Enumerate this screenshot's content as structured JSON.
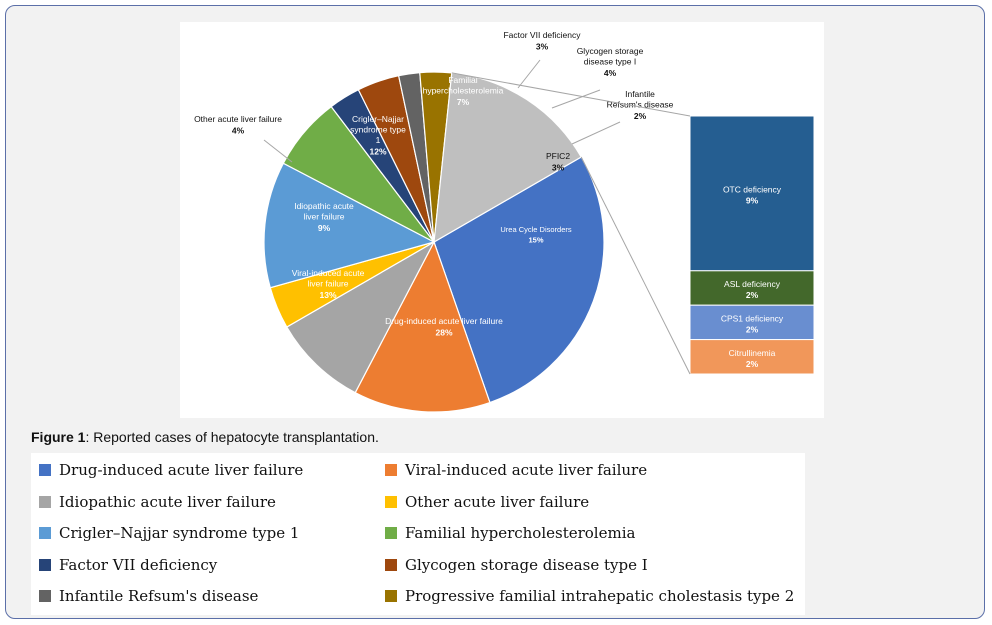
{
  "caption": {
    "label": "Figure 1",
    "text": ": Reported cases of hepatocyte transplantation."
  },
  "chart_data": {
    "type": "pie",
    "title": "",
    "slices": [
      {
        "name": "Drug-induced acute liver failure",
        "label": "Drug-induced acute liver failure",
        "value": 28,
        "pct": "28%",
        "color": "#4472c4"
      },
      {
        "name": "Viral-induced acute liver failure",
        "label": "Viral-induced acute liver failure",
        "value": 13,
        "pct": "13%",
        "color": "#ed7d31"
      },
      {
        "name": "Idiopathic acute liver failure",
        "label": "Idiopathic acute liver failure",
        "value": 9,
        "pct": "9%",
        "color": "#a5a5a5"
      },
      {
        "name": "Other acute liver failure",
        "label": "Other acute liver failure",
        "value": 4,
        "pct": "4%",
        "color": "#ffc000"
      },
      {
        "name": "Crigler–Najjar syndrome type 1",
        "label": "Crigler–Najjar syndrome type 1",
        "value": 12,
        "pct": "12%",
        "color": "#5b9bd5"
      },
      {
        "name": "Familial hypercholesterolemia",
        "label": "Familial hypercholesterolemia",
        "value": 7,
        "pct": "7%",
        "color": "#70ad47"
      },
      {
        "name": "Factor VII deficiency",
        "label": "Factor VII deficiency",
        "value": 3,
        "pct": "3%",
        "color": "#264478"
      },
      {
        "name": "Glycogen storage disease type I",
        "label": "Glycogen storage disease type I",
        "value": 4,
        "pct": "4%",
        "color": "#9e480e"
      },
      {
        "name": "Infantile Refsum's disease",
        "label": "Infantile Refsum's disease",
        "value": 2,
        "pct": "2%",
        "color": "#636363"
      },
      {
        "name": "Progressive familial intrahepatic cholestasis type 2",
        "label": "PFIC2",
        "value": 3,
        "pct": "3%",
        "color": "#997300"
      },
      {
        "name": "Urea Cycle Disorders",
        "label": "Urea Cycle Disorders",
        "value": 15,
        "pct": "15%",
        "color": "#bfbfbf"
      }
    ],
    "breakout": {
      "of": "Urea Cycle Disorders",
      "items": [
        {
          "name": "OTC deficiency",
          "value": 9,
          "pct": "9%",
          "color": "#255e91"
        },
        {
          "name": "ASL deficiency",
          "value": 2,
          "pct": "2%",
          "color": "#43682b"
        },
        {
          "name": "CPS1 deficiency",
          "value": 2,
          "pct": "2%",
          "color": "#698ed0"
        },
        {
          "name": "Citrullinemia",
          "value": 2,
          "pct": "2%",
          "color": "#f1975a"
        }
      ]
    },
    "legend": [
      {
        "name": "Drug-induced acute liver failure",
        "color": "#4472c4"
      },
      {
        "name": "Viral-induced acute liver failure",
        "color": "#ed7d31"
      },
      {
        "name": "Idiopathic acute liver failure",
        "color": "#a5a5a5"
      },
      {
        "name": "Other acute liver failure",
        "color": "#ffc000"
      },
      {
        "name": "Crigler–Najjar syndrome type 1",
        "color": "#5b9bd5"
      },
      {
        "name": "Familial hypercholesterolemia",
        "color": "#70ad47"
      },
      {
        "name": "Factor VII deficiency",
        "color": "#264478"
      },
      {
        "name": "Glycogen storage disease type I",
        "color": "#9e480e"
      },
      {
        "name": "Infantile Refsum's disease",
        "color": "#636363"
      },
      {
        "name": "Progressive familial intrahepatic cholestasis type 2",
        "color": "#997300"
      }
    ],
    "legend_placement": "bottom"
  }
}
